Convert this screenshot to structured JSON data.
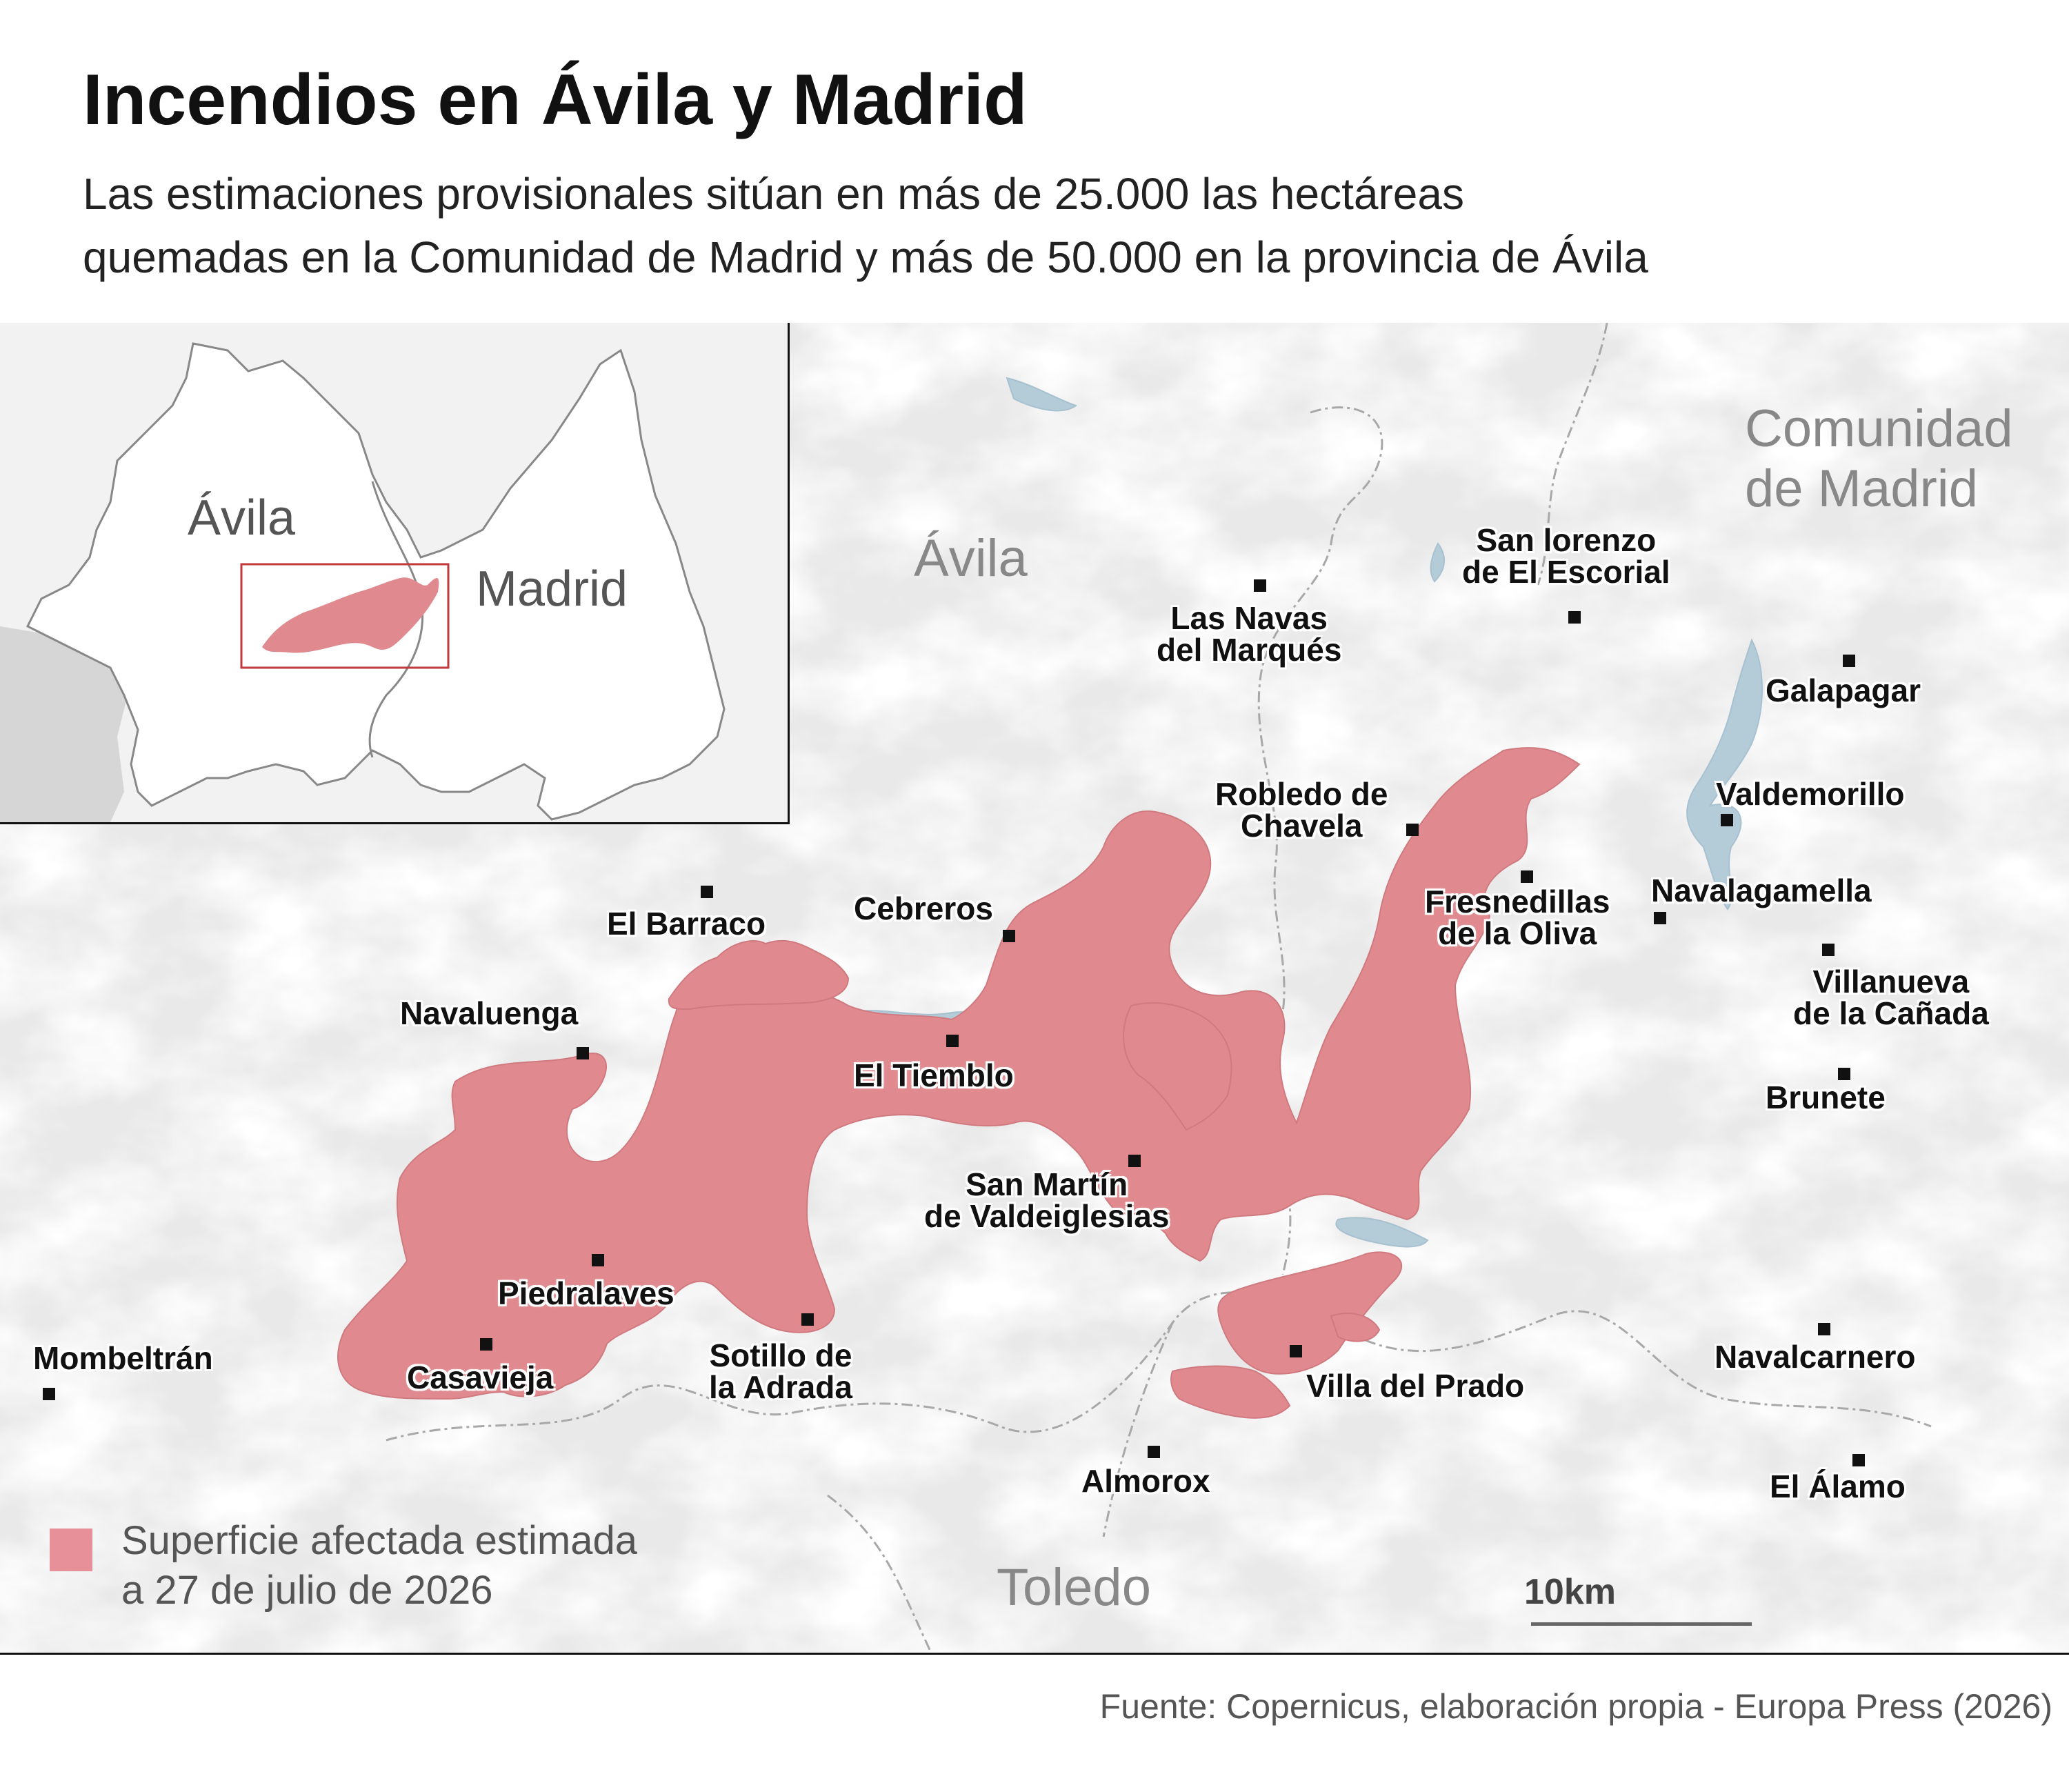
{
  "header": {
    "title": "Incendios en Ávila y Madrid",
    "subtitle_line1": "Las estimaciones provisionales sitúan en más de 25.000 las hectáreas",
    "subtitle_line2": "quemadas en la Comunidad de Madrid y más de 50.000 en la provincia de Ávila"
  },
  "inset": {
    "labels": {
      "avila": "Ávila",
      "madrid": "Madrid"
    }
  },
  "regions": {
    "avila": "Ávila",
    "madrid_line1": "Comunidad",
    "madrid_line2": "de Madrid",
    "toledo": "Toledo"
  },
  "towns": {
    "san_lorenzo": [
      "San lorenzo",
      "de El Escorial"
    ],
    "las_navas": [
      "Las Navas",
      "del Marqués"
    ],
    "galapagar": [
      "Galapagar"
    ],
    "robledo": [
      "Robledo de",
      "Chavela"
    ],
    "valdemorillo": [
      "Valdemorillo"
    ],
    "fresnedillas": [
      "Fresnedillas",
      "de la Oliva"
    ],
    "navalagamella": [
      "Navalagamella"
    ],
    "el_barraco": [
      "El Barraco"
    ],
    "cebreros": [
      "Cebreros"
    ],
    "villanueva": [
      "Villanueva",
      "de la Cañada"
    ],
    "navaluenga": [
      "Navaluenga"
    ],
    "el_tiemblo": [
      "El Tiemblo"
    ],
    "brunete": [
      "Brunete"
    ],
    "san_martin": [
      "San Martín",
      "de Valdeiglesias"
    ],
    "piedralaves": [
      "Piedralaves"
    ],
    "mombeltran": [
      "Mombeltrán"
    ],
    "sotillo": [
      "Sotillo de",
      "la Adrada"
    ],
    "navalcarnero": [
      "Navalcarnero"
    ],
    "casavieja": [
      "Casavieja"
    ],
    "villa_del_prado": [
      "Villa del Prado"
    ],
    "almorox": [
      "Almorox"
    ],
    "el_alamo": [
      "El Álamo"
    ]
  },
  "colors": {
    "burned_area": "#e08a8f",
    "water": "#b4cbd8",
    "border": "#9a9a9a"
  },
  "legend": {
    "line1": "Superficie afectada estimada",
    "line2": "a 27 de julio de 2026"
  },
  "scale": {
    "label": "10km"
  },
  "source": "Fuente: Copernicus, elaboración propia - Europa Press (2026)"
}
